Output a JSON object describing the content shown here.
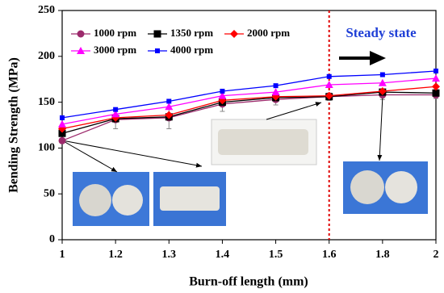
{
  "chart_data": {
    "type": "line",
    "xlabel": "Burn-off length (mm)",
    "ylabel": "Bending Strength (MPa)",
    "categories": [
      "1",
      "1.2",
      "1.3",
      "1.4",
      "1.5",
      "1.6",
      "1.8",
      "2"
    ],
    "series": [
      {
        "name": "1000 rpm",
        "color": "#9c2a6c",
        "marker": "circle",
        "values": [
          108,
          131,
          133,
          148,
          153,
          156,
          158,
          158
        ],
        "errors": [
          0,
          10,
          12,
          8,
          6,
          4,
          5,
          4
        ]
      },
      {
        "name": "1350 rpm",
        "color": "#000000",
        "marker": "square",
        "values": [
          116,
          132,
          134,
          150,
          155,
          156,
          161,
          160
        ]
      },
      {
        "name": "2000 rpm",
        "color": "#ff0000",
        "marker": "diamond",
        "values": [
          121,
          133,
          136,
          152,
          156,
          157,
          162,
          167
        ]
      },
      {
        "name": "3000 rpm",
        "color": "#ff00ff",
        "marker": "triangle",
        "values": [
          126,
          137,
          145,
          157,
          161,
          169,
          171,
          176
        ]
      },
      {
        "name": "4000 rpm",
        "color": "#0000ff",
        "marker": "small-square",
        "values": [
          133,
          142,
          151,
          162,
          168,
          178,
          180,
          184
        ]
      }
    ],
    "ylim": [
      0,
      250
    ],
    "yticks": [
      0,
      50,
      100,
      150,
      200,
      250
    ],
    "vline": {
      "at": "1.6",
      "color": "#e00000"
    },
    "annotation": "Steady state"
  }
}
